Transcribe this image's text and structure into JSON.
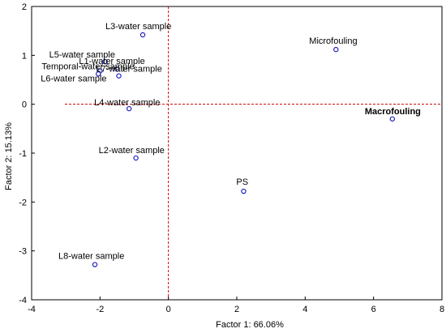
{
  "chart_data": {
    "type": "scatter",
    "xlabel": "Factor 1: 66.06%",
    "ylabel": "Factor 2: 15.13%",
    "xlim": [
      -4,
      8
    ],
    "ylim": [
      -4,
      2
    ],
    "xticks": [
      "-4",
      "-2",
      "0",
      "2",
      "4",
      "6",
      "8"
    ],
    "yticks": [
      "2",
      "1",
      "0",
      "-1",
      "-2",
      "-3",
      "-4"
    ],
    "grid": false,
    "reference_lines": {
      "x": 0,
      "y": 0,
      "color": "#cc0000",
      "style": "dashed"
    },
    "marker_color": "#1f1fbf",
    "points": [
      {
        "label": "L3-water sample",
        "x": -0.75,
        "y": 1.42,
        "bold": false
      },
      {
        "label": "L5-water sample",
        "x": -1.85,
        "y": 0.87,
        "bold": false
      },
      {
        "label": "L1-water sample",
        "x": -1.5,
        "y": 0.72,
        "bold": false
      },
      {
        "label": "Temporal-water sample",
        "x": -2.0,
        "y": 0.68,
        "bold": false
      },
      {
        "label": "L7-water sample",
        "x": -1.45,
        "y": 0.58,
        "bold": false
      },
      {
        "label": "L6-water sample",
        "x": -2.05,
        "y": 0.62,
        "bold": false
      },
      {
        "label": "L4-water sample",
        "x": -1.15,
        "y": -0.09,
        "bold": false
      },
      {
        "label": "L2-water sample",
        "x": -0.95,
        "y": -1.1,
        "bold": false
      },
      {
        "label": "L8-water sample",
        "x": -2.15,
        "y": -3.28,
        "bold": false
      },
      {
        "label": "PS",
        "x": 2.2,
        "y": -1.78,
        "bold": false
      },
      {
        "label": "Microfouling",
        "x": 4.9,
        "y": 1.12,
        "bold": false
      },
      {
        "label": "Macrofouling",
        "x": 6.55,
        "y": -0.3,
        "bold": true
      }
    ]
  }
}
